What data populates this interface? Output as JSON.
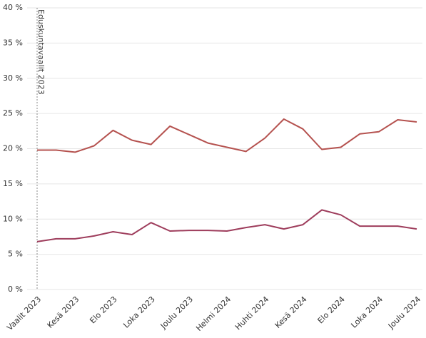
{
  "chart_data": {
    "type": "line",
    "annotation": "Eduskuntavaalit 2023",
    "categories": [
      "Vaalit 2023",
      null,
      "Kesä 2023",
      null,
      "Elo 2023",
      null,
      "Loka 2023",
      null,
      "Joulu 2023",
      null,
      "Helmi 2024",
      null,
      "Huhti 2024",
      null,
      "Kesä 2024",
      null,
      "Elo 2024",
      null,
      "Loka 2024",
      null,
      "Joulu 2024"
    ],
    "series": [
      {
        "color": "#b5524f",
        "values": [
          19.8,
          19.8,
          19.5,
          20.4,
          22.6,
          21.2,
          20.6,
          23.2,
          22.0,
          20.8,
          20.2,
          19.6,
          21.5,
          24.2,
          22.8,
          19.9,
          20.2,
          22.1,
          22.4,
          24.1,
          23.8
        ]
      },
      {
        "color": "#9e3d5c",
        "values": [
          6.8,
          7.2,
          7.2,
          7.6,
          8.2,
          7.8,
          9.5,
          8.3,
          8.4,
          8.4,
          8.3,
          8.8,
          9.2,
          8.6,
          9.2,
          11.3,
          10.6,
          9.0,
          9.0,
          9.0,
          8.6
        ]
      }
    ],
    "ylim": [
      0,
      40
    ],
    "yticks": [
      {
        "value": 0,
        "label": "0 %"
      },
      {
        "value": 5,
        "label": "5 %"
      },
      {
        "value": 10,
        "label": "10 %"
      },
      {
        "value": 15,
        "label": "15 %"
      },
      {
        "value": 20,
        "label": "20 %"
      },
      {
        "value": 25,
        "label": "25 %"
      },
      {
        "value": 30,
        "label": "30 %"
      },
      {
        "value": 35,
        "label": "35 %"
      },
      {
        "value": 40,
        "label": "40 %"
      }
    ],
    "grid": true
  }
}
